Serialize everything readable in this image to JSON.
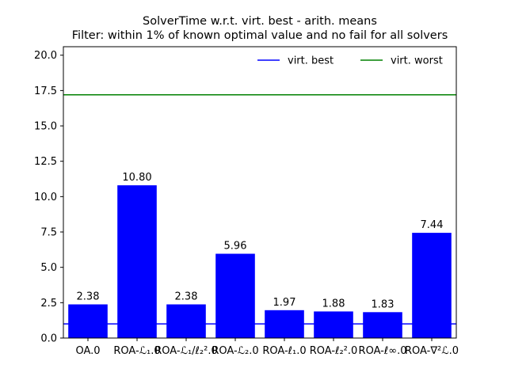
{
  "chart_data": {
    "type": "bar",
    "title": "SolverTime w.r.t. virt. best - arith. means",
    "subtitle": "Filter: within 1% of known optimal value and no fail for all solvers",
    "categories": [
      "OA.0",
      "ROA-ℒ₁.0",
      "ROA-ℒ₁/ℓ₂².0",
      "ROA-ℒ₂.0",
      "ROA-ℓ₁.0",
      "ROA-ℓ₂².0",
      "ROA-ℓ∞.0",
      "ROA-∇²ℒ.0"
    ],
    "values": [
      2.38,
      10.8,
      2.38,
      5.96,
      1.97,
      1.88,
      1.83,
      7.44
    ],
    "data_labels": [
      "2.38",
      "10.80",
      "2.38",
      "5.96",
      "1.97",
      "1.88",
      "1.83",
      "7.44"
    ],
    "bar_color": "#0000ff",
    "ylim": [
      0,
      20.6
    ],
    "yticks": [
      "0.0",
      "2.5",
      "5.0",
      "7.5",
      "10.0",
      "12.5",
      "15.0",
      "17.5",
      "20.0"
    ],
    "ytick_values": [
      0,
      2.5,
      5,
      7.5,
      10,
      12.5,
      15,
      17.5,
      20
    ],
    "reference_lines": [
      {
        "name": "virt. best",
        "value": 1.0,
        "color": "#0000ff"
      },
      {
        "name": "virt. worst",
        "value": 17.2,
        "color": "#008000"
      }
    ],
    "legend_position": "top-right",
    "grid": false,
    "xlabel": "",
    "ylabel": ""
  }
}
